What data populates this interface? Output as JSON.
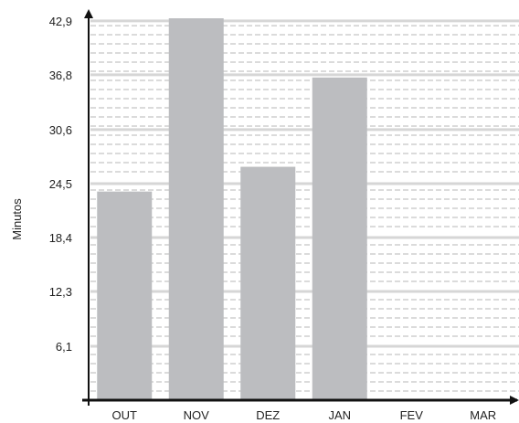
{
  "chart_data": {
    "type": "bar",
    "title": "",
    "xlabel": "",
    "ylabel": "Minutos",
    "categories": [
      "OUT",
      "NOV",
      "DEZ",
      "JAN",
      "FEV",
      "MAR"
    ],
    "values": [
      23.6,
      43.2,
      26.4,
      36.5,
      null,
      null
    ],
    "yticks": [
      "6,1",
      "12,3",
      "18,4",
      "24,5",
      "30,6",
      "36,8",
      "42,9"
    ],
    "ytick_values": [
      6.1,
      12.3,
      18.4,
      24.5,
      30.6,
      36.8,
      42.9
    ],
    "ylim": [
      0,
      43.2
    ],
    "grid": true,
    "colors": {
      "bar": "#bcbdc0",
      "grid_solid": "#d6d6d6",
      "grid_dashed": "#cfcfcf",
      "axis": "#111111"
    }
  }
}
